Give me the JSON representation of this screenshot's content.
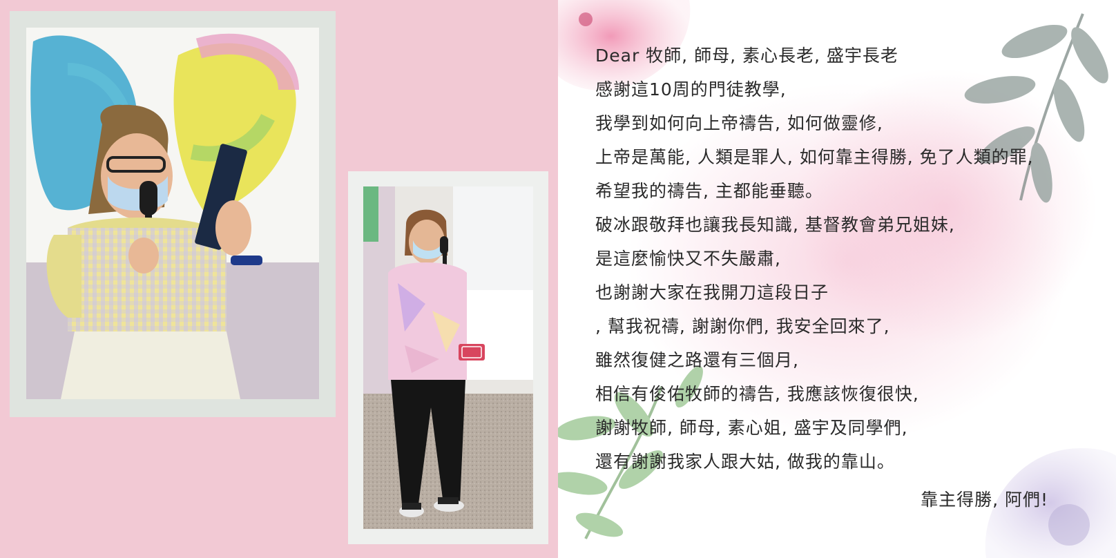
{
  "letter": {
    "lines": [
      "Dear 牧師, 師母, 素心長老, 盛宇長老",
      "感謝這10周的門徒教學,",
      "我學到如何向上帝禱告, 如何做靈修,",
      "上帝是萬能, 人類是罪人, 如何靠主得勝, 免了人類的罪,",
      "希望我的禱告, 主都能垂聽。",
      "破冰跟敬拜也讓我長知識, 基督教會弟兄姐妹,",
      "是這麼愉快又不失嚴肅,",
      "也謝謝大家在我開刀這段日子",
      ", 幫我祝禱, 謝謝你們, 我安全回來了,",
      "雖然復健之路還有三個月,",
      "相信有俊佑牧師的禱告, 我應該恢復很快,",
      "謝謝牧師, 師母, 素心姐, 盛宇及同學們,",
      "還有謝謝我家人跟大姑, 做我的靠山。"
    ],
    "signoff": "靠主得勝, 阿們!"
  },
  "colors": {
    "left_background": "#f2c9d4",
    "frame": "#dfe4df",
    "text": "#2a2a2a"
  }
}
